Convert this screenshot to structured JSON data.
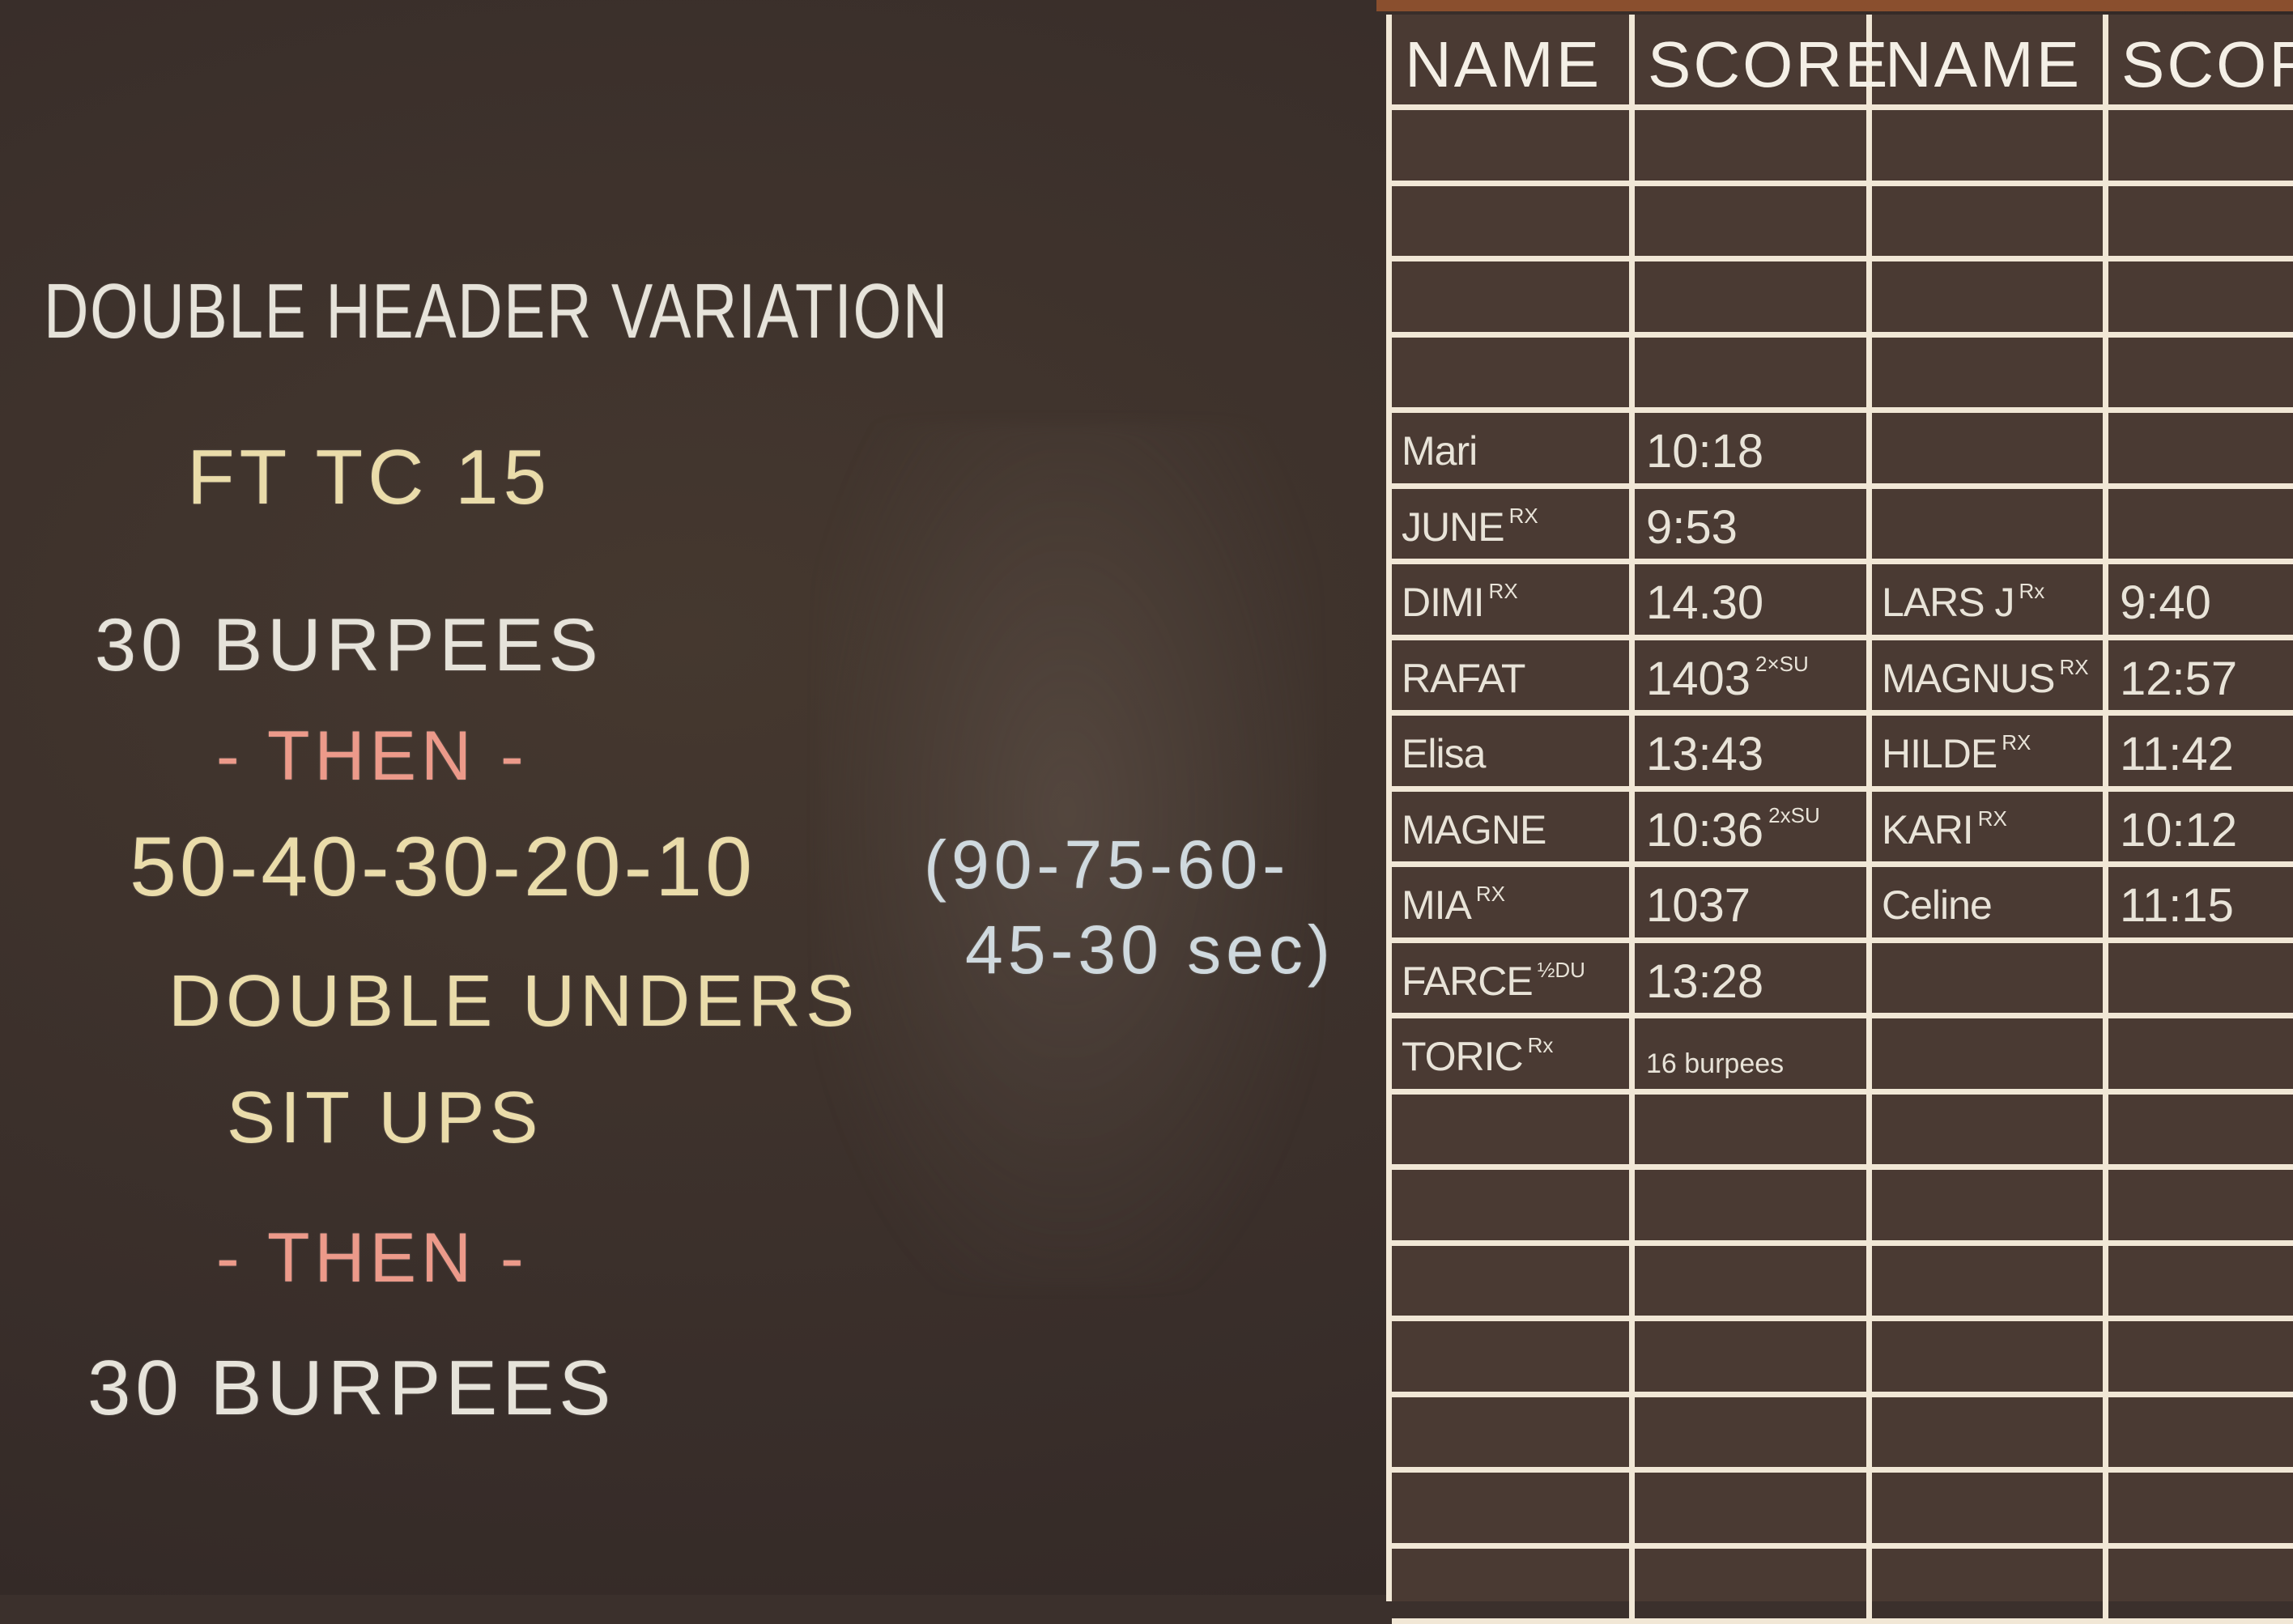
{
  "colors": {
    "board": "#3b302c",
    "grid_lines": "#f1e7d6",
    "chalk_white": "#e6e3da",
    "chalk_yellow": "#eadcaa",
    "chalk_pink": "#ec9a8a",
    "chalk_blue": "#cfd9de"
  },
  "workout": {
    "title": "DOUBLE HEADER VARIATION",
    "time_cap": "FT TC 15",
    "part1": "30 BURPEES",
    "then1": "- THEN -",
    "reps": "50-40-30-20-10",
    "interval_line1": "(90-75-60-",
    "interval_line2": "45-30 sec)",
    "movement1": "DOUBLE UNDERS",
    "movement2": "SIT UPS",
    "then2": "- THEN -",
    "part3": "30 BURPEES"
  },
  "scoreboard": {
    "headers": [
      "NAME",
      "SCORE",
      "NAME",
      "SCORE"
    ],
    "left_rows": [
      {
        "name": "Mari",
        "tag": "",
        "score": "10:18",
        "note": ""
      },
      {
        "name": "JUNE",
        "tag": "RX",
        "score": "9:53",
        "note": ""
      },
      {
        "name": "DIMI",
        "tag": "RX",
        "score": "14.30",
        "note": ""
      },
      {
        "name": "RAFAT",
        "tag": "",
        "score": "1403",
        "note": "2×SU"
      },
      {
        "name": "Elisa",
        "tag": "",
        "score": "13:43",
        "note": ""
      },
      {
        "name": "MAGNE",
        "tag": "",
        "score": "10:36",
        "note": "2xSU"
      },
      {
        "name": "MIA",
        "tag": "RX",
        "score": "1037",
        "note": ""
      },
      {
        "name": "FARCE",
        "tag": "½DU",
        "score": "13:28",
        "note": ""
      },
      {
        "name": "TORIC",
        "tag": "Rx",
        "score": "16 burpees",
        "note": ""
      }
    ],
    "right_rows": [
      {
        "name": "LARS J",
        "tag": "Rx",
        "score": "9:40"
      },
      {
        "name": "MAGNUS",
        "tag": "RX",
        "score": "12:57"
      },
      {
        "name": "HILDE",
        "tag": "RX",
        "score": "11:42"
      },
      {
        "name": "KARI",
        "tag": "RX",
        "score": "10:12"
      },
      {
        "name": "Celine",
        "tag": "",
        "score": "11:15"
      }
    ]
  }
}
